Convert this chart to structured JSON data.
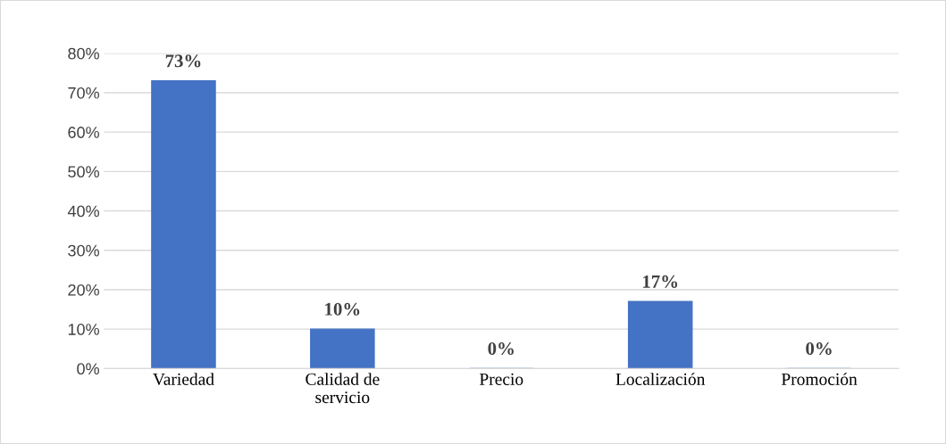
{
  "chart_data": {
    "type": "bar",
    "categories": [
      "Variedad",
      "Calidad de\nservicio",
      "Precio",
      "Localización",
      "Promoción"
    ],
    "values": [
      73,
      10,
      0,
      17,
      0
    ],
    "value_labels": [
      "73%",
      "10%",
      "0%",
      "17%",
      "0%"
    ],
    "color": "#4472c4",
    "ylim": [
      0,
      80
    ],
    "yticks": [
      {
        "value": 0,
        "label": "0%"
      },
      {
        "value": 10,
        "label": "10%"
      },
      {
        "value": 20,
        "label": "20%"
      },
      {
        "value": 30,
        "label": "30%"
      },
      {
        "value": 40,
        "label": "40%"
      },
      {
        "value": 50,
        "label": "50%"
      },
      {
        "value": 60,
        "label": "60%"
      },
      {
        "value": 70,
        "label": "70%"
      },
      {
        "value": 80,
        "label": "80%"
      }
    ],
    "grid": "y",
    "legend": false
  }
}
